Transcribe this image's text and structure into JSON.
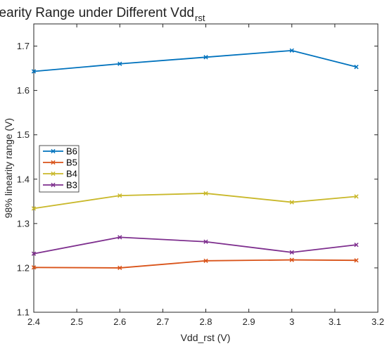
{
  "chart_data": {
    "type": "line",
    "title": "Linearity Range under Different Vdd",
    "title_subscript": "rst",
    "xlabel": "Vdd_rst (V)",
    "ylabel": "98% linearity range (V)",
    "xlim": [
      2.4,
      3.2
    ],
    "ylim": [
      1.1,
      1.75
    ],
    "xticks": [
      2.4,
      2.5,
      2.6,
      2.7,
      2.8,
      2.9,
      3.0,
      3.1,
      3.2
    ],
    "xtick_labels": [
      "2.4",
      "2.5",
      "2.6",
      "2.7",
      "2.8",
      "2.9",
      "3",
      "3.1",
      "3.2"
    ],
    "yticks": [
      1.1,
      1.2,
      1.3,
      1.4,
      1.5,
      1.6,
      1.7
    ],
    "ytick_labels": [
      "1.1",
      "1.2",
      "1.3",
      "1.4",
      "1.5",
      "1.6",
      "1.7"
    ],
    "grid": false,
    "legend_position": "middle-left",
    "marker": "x",
    "x": [
      2.4,
      2.6,
      2.8,
      3.0,
      3.15
    ],
    "series": [
      {
        "name": "B6",
        "color": "#0072BD",
        "values": [
          1.643,
          1.66,
          1.675,
          1.69,
          1.653
        ]
      },
      {
        "name": "B5",
        "color": "#D95319",
        "values": [
          1.201,
          1.2,
          1.216,
          1.218,
          1.217
        ]
      },
      {
        "name": "B4",
        "color": "#C9B82A",
        "values": [
          1.334,
          1.363,
          1.368,
          1.348,
          1.361
        ]
      },
      {
        "name": "B3",
        "color": "#7E2F8E",
        "values": [
          1.232,
          1.269,
          1.259,
          1.235,
          1.252
        ]
      }
    ]
  }
}
